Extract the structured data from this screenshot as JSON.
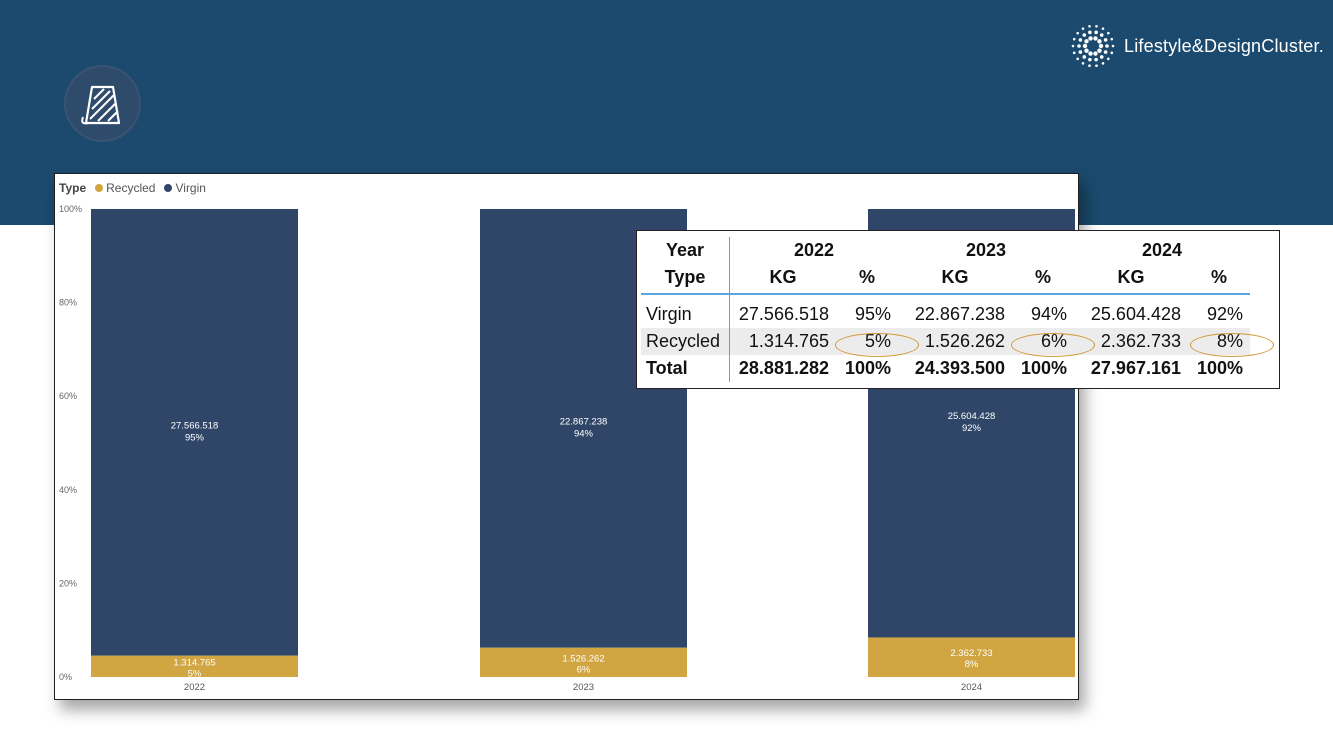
{
  "brand": {
    "logo_text": "Lifestyle&DesignCluster."
  },
  "colors": {
    "banner": "#1b4a6e",
    "virgin": "#2f4668",
    "recycled": "#d0a542",
    "table_accent": "#5aa4dc",
    "highlight_oval": "#d19a3a"
  },
  "icons": {
    "header_icon": "yarn-spool-icon",
    "logo_icon": "dotted-sun-icon"
  },
  "chart_data": {
    "type": "bar",
    "stacked": "percent",
    "legend": {
      "title": "Type",
      "placement": "top-left",
      "entries": [
        "Recycled",
        "Virgin"
      ]
    },
    "categories": [
      "2022",
      "2023",
      "2024"
    ],
    "ylim": [
      0,
      100
    ],
    "yticks": [
      "0%",
      "20%",
      "40%",
      "60%",
      "80%",
      "100%"
    ],
    "series": [
      {
        "name": "Recycled",
        "values": [
          1314765,
          1526262,
          2362733
        ],
        "value_labels": [
          "1.314.765",
          "1.526.262",
          "2.362.733"
        ],
        "percent_labels": [
          "5%",
          "6%",
          "8%"
        ]
      },
      {
        "name": "Virgin",
        "values": [
          27566518,
          22867238,
          25604428
        ],
        "value_labels": [
          "27.566.518",
          "22.867.238",
          "25.604.428"
        ],
        "percent_labels": [
          "95%",
          "94%",
          "92%"
        ]
      }
    ]
  },
  "table": {
    "header_year": "Year",
    "header_type": "Type",
    "years": [
      "2022",
      "2023",
      "2024"
    ],
    "kg_label": "KG",
    "pct_label": "%",
    "rows": [
      {
        "label": "Virgin",
        "cells": [
          "27.566.518",
          "95%",
          "22.867.238",
          "94%",
          "25.604.428",
          "92%"
        ]
      },
      {
        "label": "Recycled",
        "cells": [
          "1.314.765",
          "5%",
          "1.526.262",
          "6%",
          "2.362.733",
          "8%"
        ]
      },
      {
        "label": "Total",
        "cells": [
          "28.881.282",
          "100%",
          "24.393.500",
          "100%",
          "27.967.161",
          "100%"
        ]
      }
    ]
  }
}
